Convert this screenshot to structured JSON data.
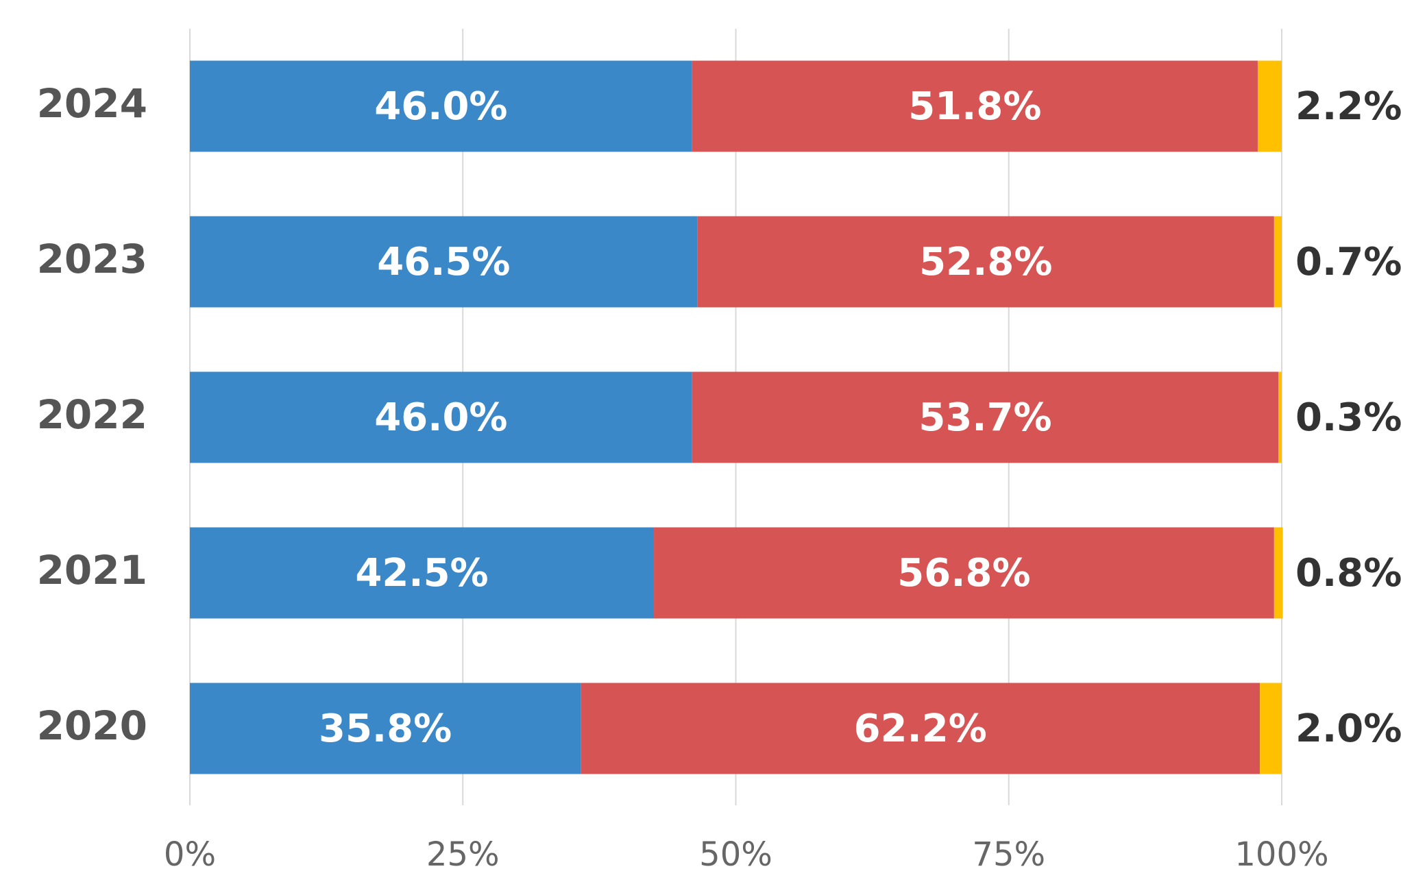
{
  "chart_data": {
    "type": "stacked-bar-horizontal",
    "categories": [
      "2024",
      "2023",
      "2022",
      "2021",
      "2020"
    ],
    "series": [
      {
        "color": "#3b88c9",
        "values": [
          46.0,
          46.5,
          46.0,
          42.5,
          35.8
        ],
        "value_labels": [
          "46.0%",
          "46.5%",
          "46.0%",
          "42.5%",
          "35.8%"
        ]
      },
      {
        "color": "#d65454",
        "values": [
          51.8,
          52.8,
          53.7,
          56.8,
          62.2
        ],
        "value_labels": [
          "51.8%",
          "52.8%",
          "53.7%",
          "56.8%",
          "62.2%"
        ]
      },
      {
        "color": "#ffc000",
        "values": [
          2.2,
          0.7,
          0.3,
          0.8,
          2.0
        ],
        "value_labels": [
          "2.2%",
          "0.7%",
          "0.3%",
          "0.8%",
          "2.0%"
        ]
      }
    ],
    "xlim": [
      0,
      100
    ],
    "xticks": [
      {
        "value": 0,
        "label": "0%"
      },
      {
        "value": 25,
        "label": "25%"
      },
      {
        "value": 50,
        "label": "50%"
      },
      {
        "value": 75,
        "label": "75%"
      },
      {
        "value": 100,
        "label": "100%"
      }
    ],
    "grid": true
  }
}
